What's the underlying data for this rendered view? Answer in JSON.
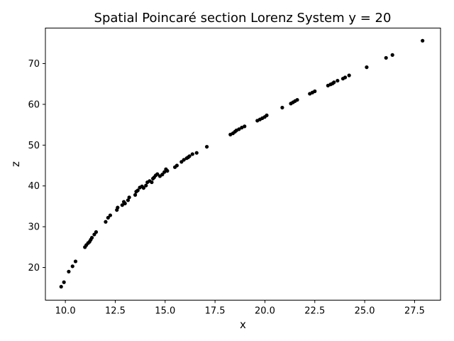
{
  "chart_data": {
    "type": "scatter",
    "title": "Spatial Poincaré section Lorenz System y = 20",
    "xlabel": "x",
    "ylabel": "z",
    "xlim": [
      9.0,
      28.8
    ],
    "ylim": [
      12.0,
      78.7
    ],
    "xticks": [
      "10.0",
      "12.5",
      "15.0",
      "17.5",
      "20.0",
      "22.5",
      "25.0",
      "27.5"
    ],
    "yticks": [
      "20",
      "30",
      "40",
      "50",
      "60",
      "70"
    ],
    "grid": false,
    "marker_color": "#000000",
    "x": [
      9.79,
      9.93,
      10.17,
      10.36,
      10.51,
      10.98,
      11.05,
      11.14,
      11.21,
      11.27,
      11.33,
      11.45,
      11.54,
      12.02,
      12.14,
      12.25,
      12.58,
      12.62,
      12.85,
      12.93,
      12.99,
      13.14,
      13.2,
      13.5,
      13.55,
      13.63,
      13.73,
      13.84,
      13.92,
      14.04,
      14.11,
      14.22,
      14.33,
      14.39,
      14.45,
      14.53,
      14.61,
      14.74,
      14.86,
      14.96,
      15.04,
      15.11,
      15.49,
      15.59,
      15.82,
      15.94,
      16.08,
      16.15,
      16.22,
      16.37,
      16.58,
      17.09,
      18.27,
      18.4,
      18.5,
      18.57,
      18.7,
      18.84,
      18.98,
      19.62,
      19.75,
      19.87,
      19.99,
      20.09,
      20.87,
      21.3,
      21.41,
      21.51,
      21.62,
      22.25,
      22.38,
      22.5,
      23.16,
      23.29,
      23.39,
      23.46,
      23.64,
      23.91,
      24.02,
      24.22,
      25.1,
      26.07,
      26.39,
      27.9
    ],
    "y": [
      15.3,
      16.4,
      19.0,
      20.3,
      21.5,
      25.0,
      25.5,
      26.0,
      26.3,
      26.8,
      27.3,
      28.1,
      28.7,
      31.2,
      32.2,
      32.8,
      34.1,
      34.7,
      35.3,
      36.1,
      35.7,
      36.5,
      37.2,
      37.8,
      38.6,
      38.9,
      39.6,
      39.9,
      39.5,
      40.1,
      40.9,
      41.2,
      40.9,
      41.8,
      42.1,
      42.6,
      42.9,
      42.4,
      42.8,
      43.4,
      44.1,
      43.7,
      44.6,
      45.0,
      45.9,
      46.4,
      46.8,
      47.0,
      47.3,
      47.8,
      48.1,
      49.6,
      52.6,
      52.9,
      53.3,
      53.6,
      53.9,
      54.3,
      54.6,
      56.0,
      56.3,
      56.6,
      56.9,
      57.3,
      59.2,
      60.2,
      60.5,
      60.8,
      61.1,
      62.6,
      62.9,
      63.2,
      64.6,
      64.9,
      65.1,
      65.4,
      65.8,
      66.3,
      66.6,
      67.1,
      69.1,
      71.4,
      72.1,
      75.6
    ]
  }
}
